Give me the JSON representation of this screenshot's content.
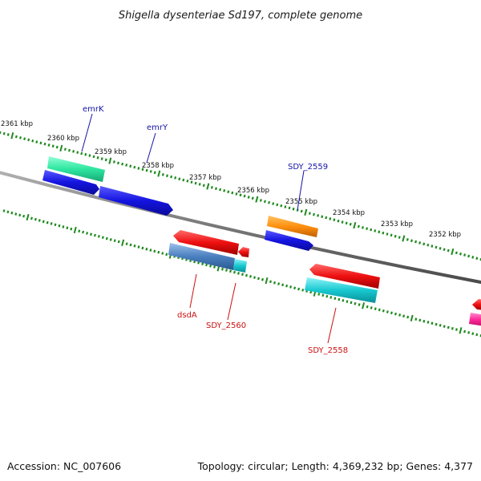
{
  "title": "Shigella dysenteriae Sd197, complete genome",
  "footer": {
    "accession": "Accession: NC_007606",
    "summary": "Topology: circular; Length: 4,369,232 bp; Genes: 4,377"
  },
  "colors": {
    "backbone": "#7a7a7a",
    "ruler_ticks": "#1e8a1e",
    "forward_label": "#1414a8",
    "reverse_label": "#cc1010"
  },
  "ruler_labels": [
    "2361 kbp",
    "2360 kbp",
    "2359 kbp",
    "2358 kbp",
    "2357 kbp",
    "2356 kbp",
    "2355 kbp",
    "2354 kbp",
    "2353 kbp",
    "2352 kbp"
  ],
  "genes": [
    {
      "name": "emrK",
      "strand": "forward",
      "label_color": "#1414a8"
    },
    {
      "name": "emrY",
      "strand": "forward",
      "label_color": "#1414a8"
    },
    {
      "name": "SDY_2559",
      "strand": "forward",
      "label_color": "#1414a8"
    },
    {
      "name": "dsdA",
      "strand": "reverse",
      "label_color": "#cc1010"
    },
    {
      "name": "SDY_2560",
      "strand": "reverse",
      "label_color": "#cc1010"
    },
    {
      "name": "SDY_2558",
      "strand": "reverse",
      "label_color": "#cc1010"
    }
  ],
  "feature_colors": [
    "#2ee6a0",
    "#1414e0",
    "#ff9010",
    "#ee1010",
    "#4a7fbf",
    "#18c8d0",
    "#ff2a9a"
  ]
}
